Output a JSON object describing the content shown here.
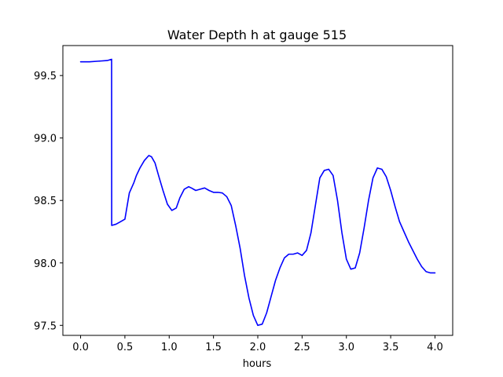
{
  "chart_data": {
    "type": "line",
    "title": "Water Depth h at gauge 515",
    "xlabel": "hours",
    "ylabel": "",
    "xlim": [
      -0.2,
      4.2
    ],
    "ylim": [
      97.42,
      99.74
    ],
    "xticks": [
      {
        "value": 0.0,
        "label": "0.0"
      },
      {
        "value": 0.5,
        "label": "0.5"
      },
      {
        "value": 1.0,
        "label": "1.0"
      },
      {
        "value": 1.5,
        "label": "1.5"
      },
      {
        "value": 2.0,
        "label": "2.0"
      },
      {
        "value": 2.5,
        "label": "2.5"
      },
      {
        "value": 3.0,
        "label": "3.0"
      },
      {
        "value": 3.5,
        "label": "3.5"
      },
      {
        "value": 4.0,
        "label": "4.0"
      }
    ],
    "yticks": [
      {
        "value": 97.5,
        "label": "97.5"
      },
      {
        "value": 98.0,
        "label": "98.0"
      },
      {
        "value": 98.5,
        "label": "98.5"
      },
      {
        "value": 99.0,
        "label": "99.0"
      },
      {
        "value": 99.5,
        "label": "99.5"
      }
    ],
    "grid": false,
    "series": [
      {
        "color": "#0000ff",
        "x": [
          0.0,
          0.1,
          0.2,
          0.3,
          0.35,
          0.351,
          0.4,
          0.45,
          0.5,
          0.55,
          0.6,
          0.63,
          0.67,
          0.72,
          0.77,
          0.8,
          0.84,
          0.88,
          0.93,
          0.98,
          1.03,
          1.08,
          1.12,
          1.17,
          1.22,
          1.25,
          1.3,
          1.35,
          1.4,
          1.45,
          1.5,
          1.55,
          1.6,
          1.65,
          1.7,
          1.75,
          1.8,
          1.85,
          1.9,
          1.95,
          2.0,
          2.05,
          2.1,
          2.15,
          2.2,
          2.25,
          2.3,
          2.35,
          2.4,
          2.45,
          2.5,
          2.55,
          2.6,
          2.65,
          2.7,
          2.75,
          2.8,
          2.85,
          2.9,
          2.95,
          3.0,
          3.05,
          3.1,
          3.15,
          3.2,
          3.25,
          3.3,
          3.35,
          3.4,
          3.45,
          3.5,
          3.55,
          3.6,
          3.65,
          3.7,
          3.75,
          3.8,
          3.85,
          3.9,
          3.95,
          4.0
        ],
        "y": [
          99.61,
          99.61,
          99.615,
          99.62,
          99.63,
          98.3,
          98.31,
          98.33,
          98.35,
          98.56,
          98.64,
          98.7,
          98.76,
          98.82,
          98.86,
          98.85,
          98.8,
          98.7,
          98.58,
          98.47,
          98.42,
          98.44,
          98.52,
          98.59,
          98.61,
          98.6,
          98.58,
          98.59,
          98.6,
          98.58,
          98.565,
          98.565,
          98.56,
          98.53,
          98.46,
          98.3,
          98.12,
          97.9,
          97.72,
          97.58,
          97.5,
          97.51,
          97.6,
          97.73,
          97.86,
          97.96,
          98.04,
          98.07,
          98.07,
          98.08,
          98.06,
          98.1,
          98.24,
          98.46,
          98.68,
          98.74,
          98.75,
          98.7,
          98.5,
          98.24,
          98.03,
          97.95,
          97.96,
          98.08,
          98.28,
          98.5,
          98.68,
          98.76,
          98.75,
          98.69,
          98.58,
          98.45,
          98.33,
          98.25,
          98.17,
          98.1,
          98.03,
          97.97,
          97.93,
          97.92,
          97.92
        ]
      }
    ]
  }
}
